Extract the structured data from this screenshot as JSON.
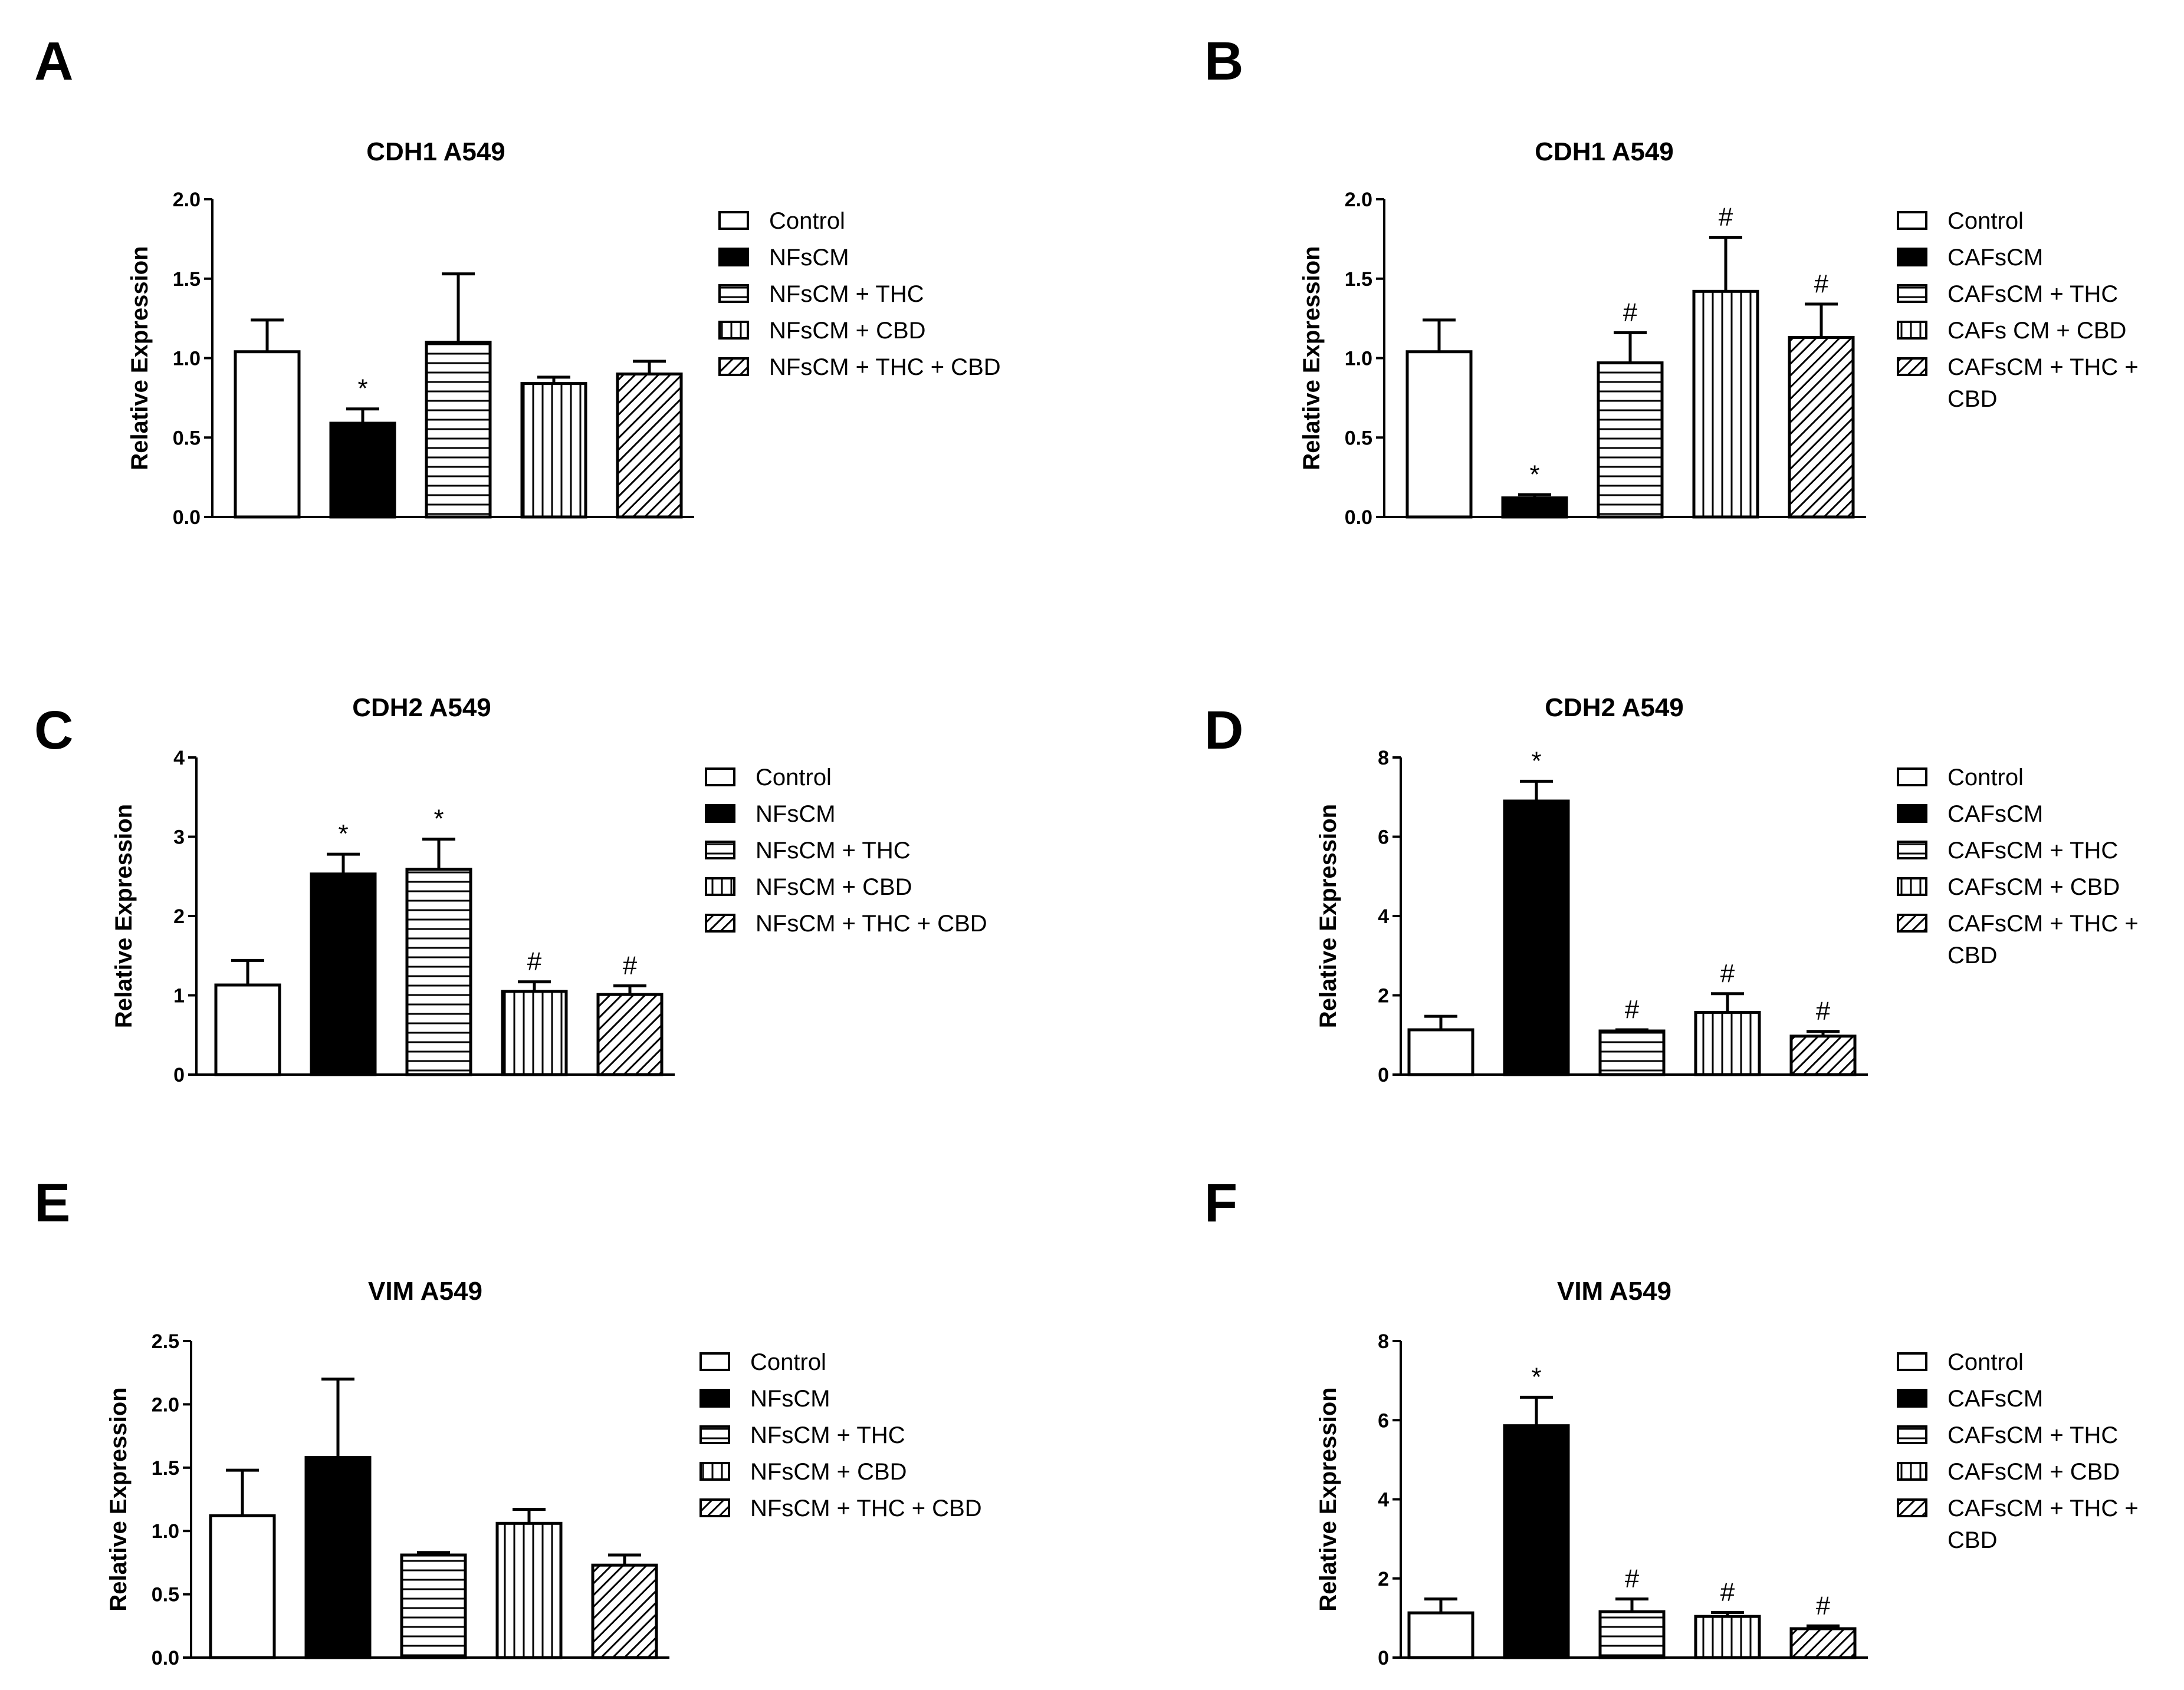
{
  "figure": {
    "panels": [
      "A",
      "B",
      "C",
      "D",
      "E",
      "F"
    ]
  },
  "chart_data": [
    {
      "panel": "A",
      "type": "bar",
      "title": "CDH1 A549",
      "ylabel": "Relative Expression",
      "ylim": [
        0,
        2.0
      ],
      "yticks": [
        "0.0",
        "0.5",
        "1.0",
        "1.5",
        "2.0"
      ],
      "ytick_values": [
        0,
        0.5,
        1.0,
        1.5,
        2.0
      ],
      "categories": [
        "Control",
        "NFsCM",
        "NFsCM + THC",
        "NFsCM + CBD",
        "NFsCM + THC + CBD"
      ],
      "legend": [
        "Control",
        "NFsCM",
        "NFsCM + THC",
        "NFsCM + CBD",
        "NFsCM + THC + CBD"
      ],
      "values": [
        1.04,
        0.59,
        1.1,
        0.84,
        0.9
      ],
      "errors": [
        0.2,
        0.09,
        0.43,
        0.04,
        0.08
      ],
      "annotations": [
        "",
        "*",
        "",
        "",
        ""
      ],
      "patterns": [
        "white",
        "black",
        "hlines",
        "vlines",
        "diag"
      ]
    },
    {
      "panel": "B",
      "type": "bar",
      "title": "CDH1 A549",
      "ylabel": "Relative Expression",
      "ylim": [
        0,
        2.0
      ],
      "yticks": [
        "0.0",
        "0.5",
        "1.0",
        "1.5",
        "2.0"
      ],
      "ytick_values": [
        0,
        0.5,
        1.0,
        1.5,
        2.0
      ],
      "categories": [
        "Control",
        "CAFsCM",
        "CAFsCM + THC",
        "CAFs CM + CBD",
        "CAFsCM + THC + CBD"
      ],
      "legend": [
        "Control",
        "CAFsCM",
        "CAFsCM + THC",
        "CAFs CM + CBD",
        "CAFsCM + THC +\nCBD"
      ],
      "values": [
        1.04,
        0.12,
        0.97,
        1.42,
        1.13
      ],
      "errors": [
        0.2,
        0.02,
        0.19,
        0.34,
        0.21
      ],
      "annotations": [
        "",
        "*",
        "#",
        "#",
        "#"
      ],
      "patterns": [
        "white",
        "black",
        "hlines",
        "vlines",
        "diag"
      ]
    },
    {
      "panel": "C",
      "type": "bar",
      "title": "CDH2 A549",
      "ylabel": "Relative Expression",
      "ylim": [
        0,
        4
      ],
      "yticks": [
        "0",
        "1",
        "2",
        "3",
        "4"
      ],
      "ytick_values": [
        0,
        1,
        2,
        3,
        4
      ],
      "categories": [
        "Control",
        "NFsCM",
        "NFsCM + THC",
        "NFsCM + CBD",
        "NFsCM + THC + CBD"
      ],
      "legend": [
        "Control",
        "NFsCM",
        "NFsCM + THC",
        "NFsCM + CBD",
        "NFsCM + THC + CBD"
      ],
      "values": [
        1.13,
        2.53,
        2.59,
        1.05,
        1.01
      ],
      "errors": [
        0.31,
        0.25,
        0.38,
        0.12,
        0.11
      ],
      "annotations": [
        "",
        "*",
        "*",
        "#",
        "#"
      ],
      "patterns": [
        "white",
        "black",
        "hlines",
        "vlines",
        "diag"
      ]
    },
    {
      "panel": "D",
      "type": "bar",
      "title": "CDH2 A549",
      "ylabel": "Relative Expression",
      "ylim": [
        0,
        8
      ],
      "yticks": [
        "0",
        "2",
        "4",
        "6",
        "8"
      ],
      "ytick_values": [
        0,
        2,
        4,
        6,
        8
      ],
      "categories": [
        "Control",
        "CAFsCM",
        "CAFsCM + THC",
        "CAFsCM + CBD",
        "CAFsCM + THC + CBD"
      ],
      "legend": [
        "Control",
        "CAFsCM",
        "CAFsCM + THC",
        "CAFsCM + CBD",
        "CAFsCM + THC +\nCBD"
      ],
      "values": [
        1.13,
        6.9,
        1.1,
        1.57,
        0.97
      ],
      "errors": [
        0.34,
        0.5,
        0.03,
        0.47,
        0.12
      ],
      "annotations": [
        "",
        "*",
        "#",
        "#",
        "#"
      ],
      "patterns": [
        "white",
        "black",
        "hlines",
        "vlines",
        "diag"
      ]
    },
    {
      "panel": "E",
      "type": "bar",
      "title": "VIM A549",
      "ylabel": "Relative Expression",
      "ylim": [
        0,
        2.5
      ],
      "yticks": [
        "0.0",
        "0.5",
        "1.0",
        "1.5",
        "2.0",
        "2.5"
      ],
      "ytick_values": [
        0,
        0.5,
        1.0,
        1.5,
        2.0,
        2.5
      ],
      "categories": [
        "Control",
        "NFsCM",
        "NFsCM + THC",
        "NFsCM + CBD",
        "NFsCM + THC + CBD"
      ],
      "legend": [
        "Control",
        "NFsCM",
        "NFsCM + THC",
        "NFsCM + CBD",
        "NFsCM + THC + CBD"
      ],
      "values": [
        1.12,
        1.58,
        0.81,
        1.06,
        0.73
      ],
      "errors": [
        0.36,
        0.62,
        0.02,
        0.11,
        0.08
      ],
      "annotations": [
        "",
        "",
        "",
        "",
        ""
      ],
      "patterns": [
        "white",
        "black",
        "hlines",
        "vlines",
        "diag"
      ]
    },
    {
      "panel": "F",
      "type": "bar",
      "title": "VIM A549",
      "ylabel": "Relative Expression",
      "ylim": [
        0,
        8
      ],
      "yticks": [
        "0",
        "2",
        "4",
        "6",
        "8"
      ],
      "ytick_values": [
        0,
        2,
        4,
        6,
        8
      ],
      "categories": [
        "Control",
        "CAFsCM",
        "CAFsCM + THC",
        "CAFsCM + CBD",
        "CAFsCM + THC + CBD"
      ],
      "legend": [
        "Control",
        "CAFsCM",
        "CAFsCM + THC",
        "CAFsCM + CBD",
        "CAFsCM + THC +\nCBD"
      ],
      "values": [
        1.13,
        5.86,
        1.16,
        1.04,
        0.73
      ],
      "errors": [
        0.35,
        0.72,
        0.32,
        0.1,
        0.07
      ],
      "annotations": [
        "",
        "*",
        "#",
        "#",
        "#"
      ],
      "patterns": [
        "white",
        "black",
        "hlines",
        "vlines",
        "diag"
      ]
    }
  ]
}
